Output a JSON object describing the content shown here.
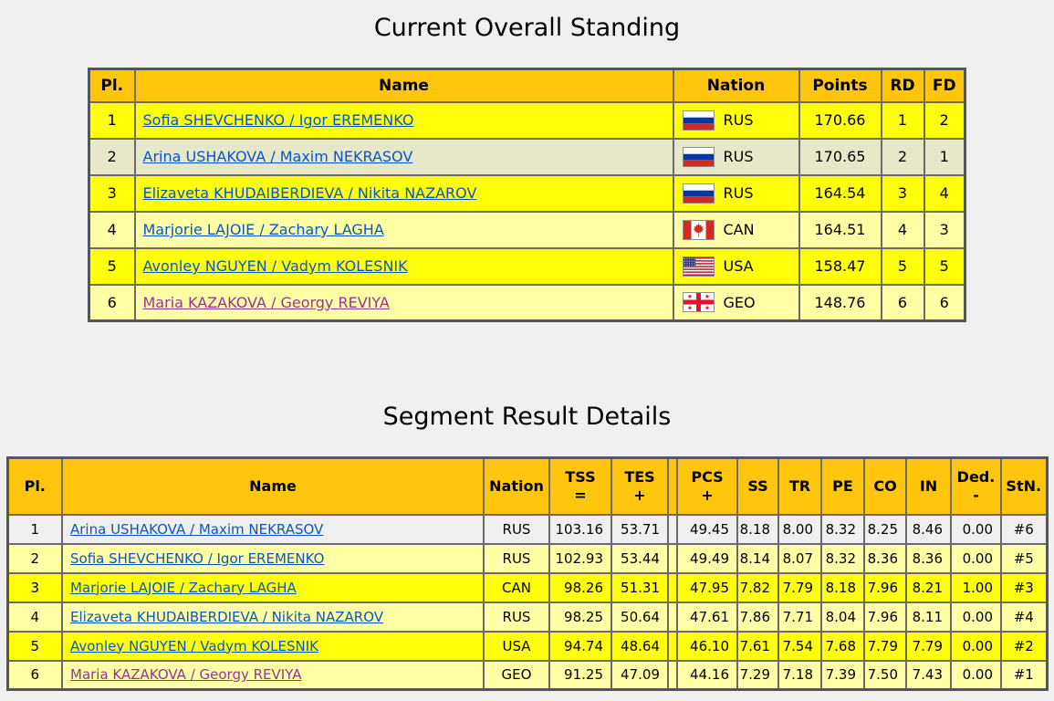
{
  "titles": {
    "overall": "Current Overall Standing",
    "segment": "Segment Result Details"
  },
  "colors": {
    "page_bg": "#f0f0f0",
    "header_bg": "#ffc60d",
    "border": "#6a6a6a",
    "row_bright": "#ffff0a",
    "row_pale": "#ffffa6",
    "row_highlight": "#e7e7ca",
    "row_grey": "#efefef",
    "link": "#0a56c8",
    "link_visited": "#993399"
  },
  "overall_table": {
    "headers": [
      "Pl.",
      "Name",
      "Nation",
      "Points",
      "RD",
      "FD"
    ],
    "rows": [
      {
        "pl": "1",
        "name": "Sofia SHEVCHENKO / Igor EREMENKO",
        "nation": "RUS",
        "flag_icon": "russia-flag-icon",
        "points": "170.66",
        "rd": "1",
        "fd": "2",
        "shade": "bright",
        "visited": false
      },
      {
        "pl": "2",
        "name": "Arina USHAKOVA / Maxim NEKRASOV",
        "nation": "RUS",
        "flag_icon": "russia-flag-icon",
        "points": "170.65",
        "rd": "2",
        "fd": "1",
        "shade": "highlight",
        "visited": false
      },
      {
        "pl": "3",
        "name": "Elizaveta KHUDAIBERDIEVA / Nikita NAZAROV",
        "nation": "RUS",
        "flag_icon": "russia-flag-icon",
        "points": "164.54",
        "rd": "3",
        "fd": "4",
        "shade": "bright",
        "visited": false
      },
      {
        "pl": "4",
        "name": "Marjorie LAJOIE / Zachary LAGHA",
        "nation": "CAN",
        "flag_icon": "canada-flag-icon",
        "points": "164.51",
        "rd": "4",
        "fd": "3",
        "shade": "pale",
        "visited": false
      },
      {
        "pl": "5",
        "name": "Avonley NGUYEN / Vadym KOLESNIK",
        "nation": "USA",
        "flag_icon": "usa-flag-icon",
        "points": "158.47",
        "rd": "5",
        "fd": "5",
        "shade": "bright",
        "visited": false
      },
      {
        "pl": "6",
        "name": "Maria KAZAKOVA / Georgy REVIYA",
        "nation": "GEO",
        "flag_icon": "georgia-flag-icon",
        "points": "148.76",
        "rd": "6",
        "fd": "6",
        "shade": "pale",
        "visited": true
      }
    ]
  },
  "segment_table": {
    "headers": [
      {
        "label": "Pl.",
        "sub": ""
      },
      {
        "label": "Name",
        "sub": ""
      },
      {
        "label": "Nation",
        "sub": ""
      },
      {
        "label": "TSS",
        "sub": "="
      },
      {
        "label": "TES",
        "sub": "+"
      },
      {
        "label": "",
        "sub": ""
      },
      {
        "label": "PCS",
        "sub": "+"
      },
      {
        "label": "SS",
        "sub": ""
      },
      {
        "label": "TR",
        "sub": ""
      },
      {
        "label": "PE",
        "sub": ""
      },
      {
        "label": "CO",
        "sub": ""
      },
      {
        "label": "IN",
        "sub": ""
      },
      {
        "label": "Ded.",
        "sub": "-"
      },
      {
        "label": "StN.",
        "sub": ""
      }
    ],
    "rows": [
      {
        "pl": "1",
        "name": "Arina USHAKOVA / Maxim NEKRASOV",
        "nation": "RUS",
        "tss": "103.16",
        "tes": "53.71",
        "pcs": "49.45",
        "ss": "8.18",
        "tr": "8.00",
        "pe": "8.32",
        "co": "8.25",
        "in": "8.46",
        "ded": "0.00",
        "stn": "#6",
        "shade": "grey",
        "visited": false
      },
      {
        "pl": "2",
        "name": "Sofia SHEVCHENKO / Igor EREMENKO",
        "nation": "RUS",
        "tss": "102.93",
        "tes": "53.44",
        "pcs": "49.49",
        "ss": "8.14",
        "tr": "8.07",
        "pe": "8.32",
        "co": "8.36",
        "in": "8.36",
        "ded": "0.00",
        "stn": "#5",
        "shade": "pale",
        "visited": false
      },
      {
        "pl": "3",
        "name": "Marjorie LAJOIE / Zachary LAGHA",
        "nation": "CAN",
        "tss": "98.26",
        "tes": "51.31",
        "pcs": "47.95",
        "ss": "7.82",
        "tr": "7.79",
        "pe": "8.18",
        "co": "7.96",
        "in": "8.21",
        "ded": "1.00",
        "stn": "#3",
        "shade": "bright",
        "visited": false
      },
      {
        "pl": "4",
        "name": "Elizaveta KHUDAIBERDIEVA / Nikita NAZAROV",
        "nation": "RUS",
        "tss": "98.25",
        "tes": "50.64",
        "pcs": "47.61",
        "ss": "7.86",
        "tr": "7.71",
        "pe": "8.04",
        "co": "7.96",
        "in": "8.11",
        "ded": "0.00",
        "stn": "#4",
        "shade": "pale",
        "visited": false
      },
      {
        "pl": "5",
        "name": "Avonley NGUYEN / Vadym KOLESNIK",
        "nation": "USA",
        "tss": "94.74",
        "tes": "48.64",
        "pcs": "46.10",
        "ss": "7.61",
        "tr": "7.54",
        "pe": "7.68",
        "co": "7.79",
        "in": "7.79",
        "ded": "0.00",
        "stn": "#2",
        "shade": "bright",
        "visited": false
      },
      {
        "pl": "6",
        "name": "Maria KAZAKOVA / Georgy REVIYA",
        "nation": "GEO",
        "tss": "91.25",
        "tes": "47.09",
        "pcs": "44.16",
        "ss": "7.29",
        "tr": "7.18",
        "pe": "7.39",
        "co": "7.50",
        "in": "7.43",
        "ded": "0.00",
        "stn": "#1",
        "shade": "pale",
        "visited": true
      }
    ]
  }
}
